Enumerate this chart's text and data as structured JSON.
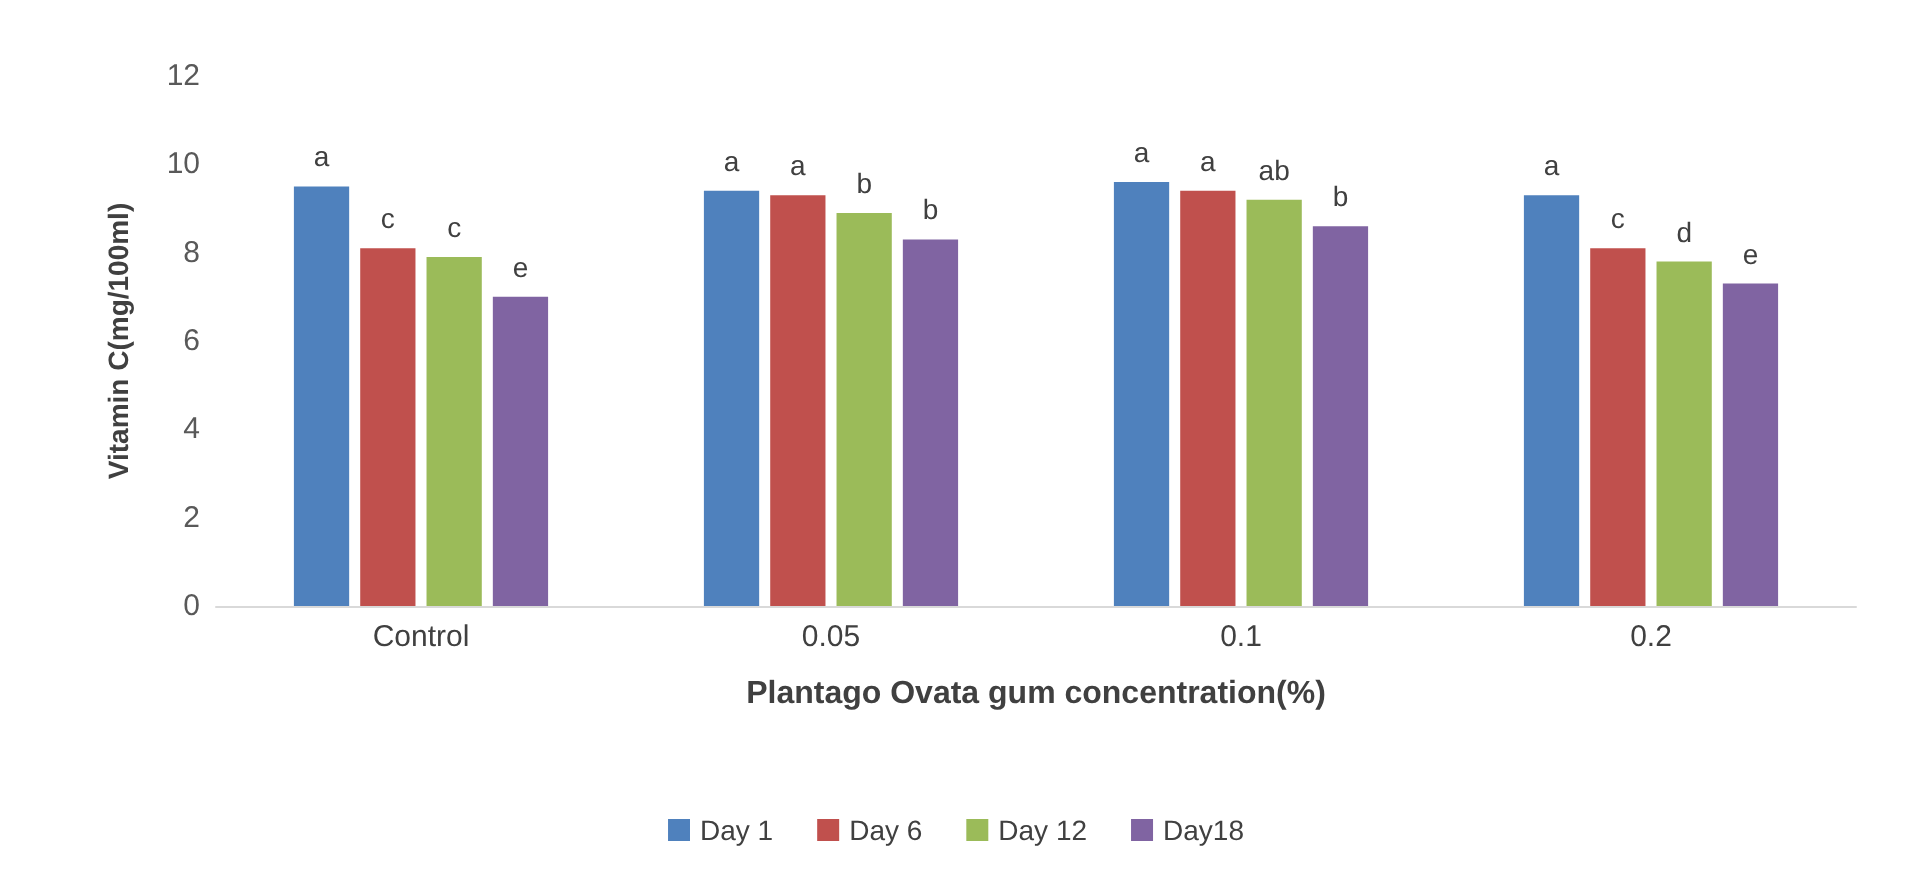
{
  "chart_data": {
    "type": "bar",
    "xlabel": "Plantago Ovata gum concentration(%)",
    "ylabel": "Vitamin C(mg/100ml)",
    "categories": [
      "Control",
      "0.05",
      "0.1",
      "0.2"
    ],
    "series": [
      {
        "name": "Day 1",
        "color": "#4f81bd",
        "values": [
          9.5,
          9.4,
          9.6,
          9.3
        ],
        "value_labels": [
          "a",
          "a",
          "a",
          "a"
        ]
      },
      {
        "name": "Day 6",
        "color": "#c0504d",
        "values": [
          8.1,
          9.3,
          9.4,
          8.1
        ],
        "value_labels": [
          "c",
          "a",
          "a",
          "c"
        ]
      },
      {
        "name": "Day 12",
        "color": "#9bbb59",
        "values": [
          7.9,
          8.9,
          9.2,
          7.8
        ],
        "value_labels": [
          "c",
          "b",
          "ab",
          "d"
        ]
      },
      {
        "name": "Day18",
        "color": "#8064a2",
        "values": [
          7.0,
          8.3,
          8.6,
          7.3
        ],
        "value_labels": [
          "e",
          "b",
          "b",
          "e"
        ]
      }
    ],
    "ylim": [
      0,
      12
    ],
    "yticks": [
      0,
      2,
      4,
      6,
      8,
      10,
      12
    ],
    "grid": false,
    "legend": "bottom"
  }
}
